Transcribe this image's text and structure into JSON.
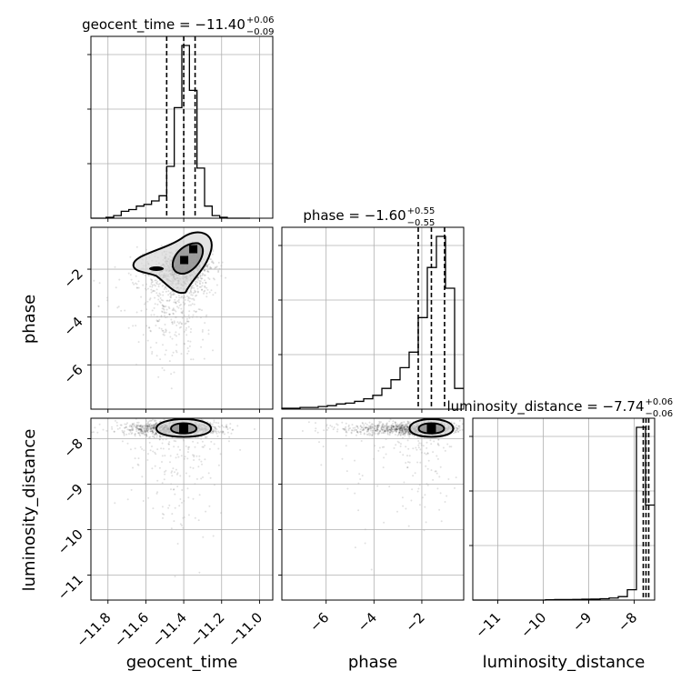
{
  "chart_data": {
    "type": "corner",
    "parameters": [
      "geocent_time",
      "phase",
      "luminosity_distance"
    ],
    "axis_labels": {
      "geocent_time": "geocent_time",
      "phase": "phase",
      "luminosity_distance": "luminosity_distance"
    },
    "ranges": {
      "geocent_time": [
        -11.89,
        -10.93
      ],
      "phase": [
        -7.85,
        -0.25
      ],
      "luminosity_distance": [
        -11.55,
        -7.55
      ]
    },
    "ticks": {
      "geocent_time": [
        -11.8,
        -11.6,
        -11.4,
        -11.2,
        -11.0
      ],
      "phase": [
        -6,
        -4,
        -2
      ],
      "luminosity_distance": [
        -11,
        -10,
        -9,
        -8
      ]
    },
    "tick_labels": {
      "geocent_time": [
        "−11.8",
        "−11.6",
        "−11.4",
        "−11.2",
        "−11.0"
      ],
      "phase": [
        "−6",
        "−4",
        "−2"
      ],
      "luminosity_distance": [
        "−11",
        "−10",
        "−9",
        "−8"
      ]
    },
    "titles": {
      "geocent_time": {
        "text": "geocent_time = −11.40",
        "plus": "+0.06",
        "minus": "−0.09"
      },
      "phase": {
        "text": "phase = −1.60",
        "plus": "+0.55",
        "minus": "−0.55"
      },
      "luminosity_distance": {
        "text": "luminosity_distance = −7.74",
        "plus": "+0.06",
        "minus": "−0.06"
      }
    },
    "quantiles": {
      "geocent_time": [
        -11.49,
        -11.4,
        -11.34
      ],
      "phase": [
        -2.15,
        -1.6,
        -1.05
      ],
      "luminosity_distance": [
        -7.8,
        -7.74,
        -7.68
      ]
    },
    "histograms": {
      "geocent_time": {
        "edges": [
          -11.89,
          -11.85,
          -11.81,
          -11.77,
          -11.73,
          -11.69,
          -11.65,
          -11.61,
          -11.57,
          -11.53,
          -11.49,
          -11.45,
          -11.41,
          -11.37,
          -11.33,
          -11.29,
          -11.25,
          -11.21,
          -11.17,
          -11.13,
          -11.09,
          -11.05
        ],
        "counts": [
          0,
          0,
          0.5,
          1.5,
          4,
          5,
          7,
          8,
          10,
          13,
          30,
          64,
          100,
          74,
          29,
          7,
          1.5,
          0.5,
          0,
          0,
          0
        ]
      },
      "phase": {
        "edges": [
          -7.85,
          -7.47,
          -7.09,
          -6.71,
          -6.33,
          -5.95,
          -5.57,
          -5.19,
          -4.81,
          -4.43,
          -4.05,
          -3.67,
          -3.29,
          -2.91,
          -2.53,
          -2.15,
          -1.77,
          -1.39,
          -1.01,
          -0.63,
          -0.25
        ],
        "counts": [
          0.5,
          0.5,
          1,
          1,
          1.5,
          2,
          3,
          3.5,
          4.5,
          6,
          8,
          12,
          17,
          24,
          33,
          53,
          82,
          100,
          70,
          12
        ]
      },
      "luminosity_distance": {
        "edges": [
          -11.55,
          -11.35,
          -11.15,
          -10.95,
          -10.75,
          -10.55,
          -10.35,
          -10.15,
          -9.95,
          -9.75,
          -9.55,
          -9.35,
          -9.15,
          -8.95,
          -8.75,
          -8.55,
          -8.35,
          -8.15,
          -7.95,
          -7.75,
          -7.55
        ],
        "counts": [
          0,
          0,
          0,
          0,
          0,
          0,
          0,
          0,
          0.2,
          0.3,
          0.3,
          0.4,
          0.5,
          0.6,
          0.8,
          1.2,
          2,
          6,
          100,
          55
        ]
      }
    },
    "scatter_centers": {
      "phase_vs_geocent_time": [
        -11.4,
        -1.6
      ],
      "luminosity_distance_vs_geocent_time": [
        -11.4,
        -7.78
      ],
      "luminosity_distance_vs_phase": [
        -1.6,
        -7.78
      ]
    },
    "grid": true
  }
}
